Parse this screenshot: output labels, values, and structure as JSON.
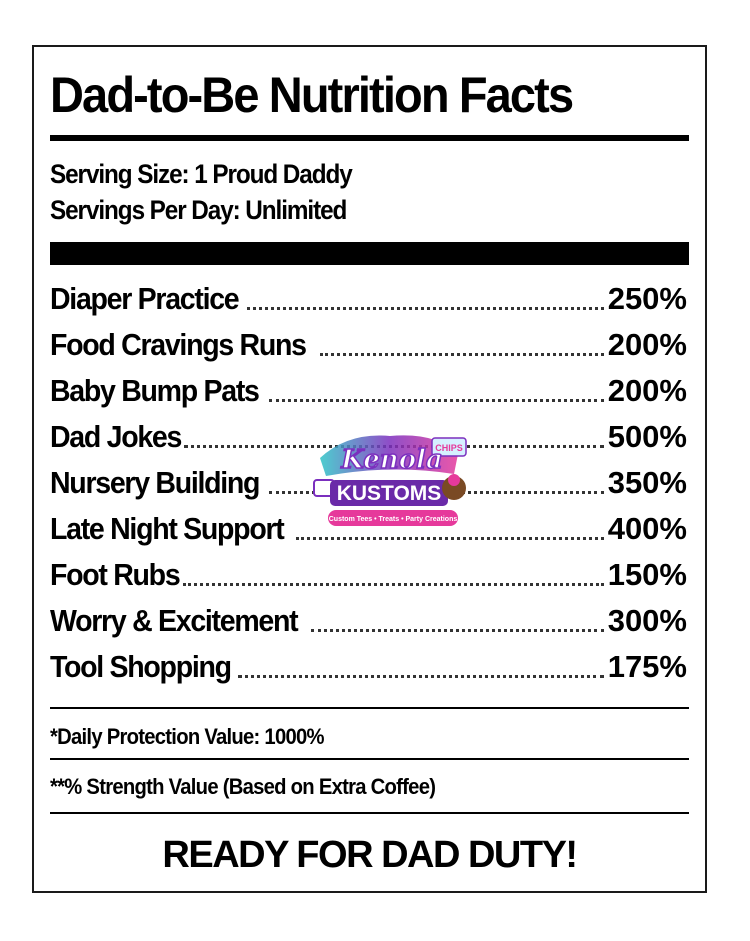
{
  "title": "Dad-to-Be Nutrition Facts",
  "serving_size": "Serving Size: 1 Proud Daddy",
  "servings_per_day": "Servings Per Day: Unlimited",
  "items": [
    {
      "label": "Diaper Practice",
      "value": "250%"
    },
    {
      "label": "Food Cravings Runs",
      "value": "200%"
    },
    {
      "label": "Baby Bump Pats",
      "value": "200%"
    },
    {
      "label": "Dad Jokes",
      "value": "500%"
    },
    {
      "label": "Nursery Building",
      "value": "350%"
    },
    {
      "label": "Late Night Support",
      "value": "400%"
    },
    {
      "label": "Foot Rubs",
      "value": "150%"
    },
    {
      "label": "Worry & Excitement",
      "value": "300%"
    },
    {
      "label": "Tool Shopping",
      "value": "175%"
    }
  ],
  "footnote_1": "*Daily Protection Value: 1000%",
  "footnote_2": "**% Strength Value (Based on Extra Coffee)",
  "slogan": "READY FOR DAD DUTY!",
  "watermark": {
    "line1": "Kenola",
    "line2": "KUSTOMS",
    "badge": "CHIPS",
    "tagline": "Custom Tees • Treats • Party Creations"
  },
  "colors": {
    "logo_purple": "#7b2fbe",
    "logo_pink": "#e6399b",
    "logo_teal": "#2ec4c6"
  }
}
